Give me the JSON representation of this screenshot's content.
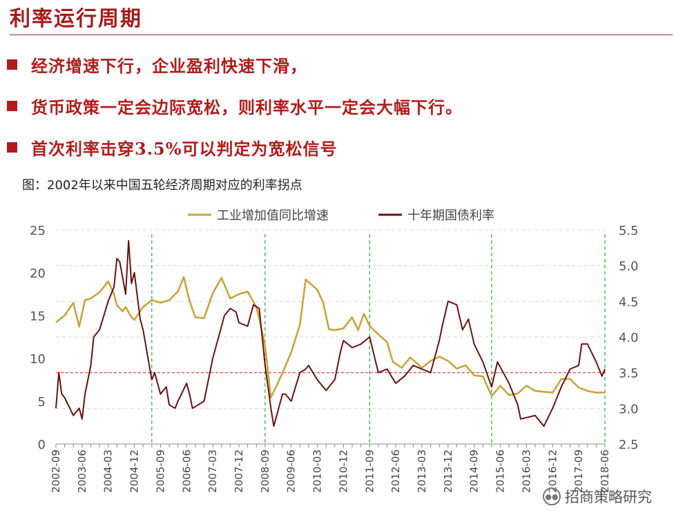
{
  "page": {
    "title": "利率运行周期",
    "bullets": [
      "经济增速下行，企业盈利快速下滑，",
      "货币政策一定会边际宽松，则利率水平一定会大幅下行。",
      "首次利率击穿3.5%可以判定为宽松信号"
    ],
    "figure_caption": "图：2002年以来中国五轮经济周期对应的利率拐点",
    "watermark": "招商策略研究",
    "watermark_icon": "wechat-icon"
  },
  "chart_data": {
    "type": "line",
    "x_start": "2002-09",
    "x_end": "2018-06",
    "x_tick_labels": [
      "2002-09",
      "2003-06",
      "2004-03",
      "2004-12",
      "2005-09",
      "2006-06",
      "2007-03",
      "2007-12",
      "2008-09",
      "2009-06",
      "2010-03",
      "2010-12",
      "2011-09",
      "2012-06",
      "2013-03",
      "2013-12",
      "2014-09",
      "2015-06",
      "2016-03",
      "2016-12",
      "2017-09",
      "2018-06"
    ],
    "y_left": {
      "min": 0,
      "max": 25,
      "ticks": [
        0,
        5,
        10,
        15,
        20,
        25
      ]
    },
    "y_right": {
      "min": 2.5,
      "max": 5.5,
      "ticks": [
        "2.5",
        "3.0",
        "3.5",
        "4.0",
        "4.5",
        "5.0",
        "5.5"
      ]
    },
    "legend_position": "top",
    "grid": "horizontal-dashed",
    "reference_line": {
      "axis": "right",
      "value": 3.5,
      "color": "#e03030",
      "style": "dashed"
    },
    "vertical_markers": {
      "dates": [
        "2005-06",
        "2008-09",
        "2011-09",
        "2015-03",
        "2018-06"
      ],
      "color": "#22aa44",
      "style": "dashed"
    },
    "series": [
      {
        "name": "工业增加值同比增速",
        "axis": "left",
        "color": "#c8a43a",
        "points": [
          [
            "2002-09",
            14.2
          ],
          [
            "2002-12",
            15.0
          ],
          [
            "2003-03",
            16.5
          ],
          [
            "2003-05",
            13.7
          ],
          [
            "2003-07",
            16.8
          ],
          [
            "2003-09",
            17.0
          ],
          [
            "2003-12",
            17.7
          ],
          [
            "2004-03",
            19.0
          ],
          [
            "2004-05",
            17.5
          ],
          [
            "2004-06",
            16.2
          ],
          [
            "2004-08",
            15.5
          ],
          [
            "2004-09",
            16.0
          ],
          [
            "2004-11",
            14.8
          ],
          [
            "2004-12",
            14.5
          ],
          [
            "2005-03",
            16.0
          ],
          [
            "2005-06",
            16.8
          ],
          [
            "2005-09",
            16.5
          ],
          [
            "2005-12",
            16.8
          ],
          [
            "2006-03",
            17.8
          ],
          [
            "2006-05",
            19.5
          ],
          [
            "2006-07",
            16.7
          ],
          [
            "2006-09",
            14.8
          ],
          [
            "2006-12",
            14.7
          ],
          [
            "2007-03",
            17.6
          ],
          [
            "2007-06",
            19.4
          ],
          [
            "2007-09",
            17.0
          ],
          [
            "2007-12",
            17.5
          ],
          [
            "2008-03",
            17.8
          ],
          [
            "2008-06",
            16.0
          ],
          [
            "2008-07",
            14.7
          ],
          [
            "2008-09",
            11.4
          ],
          [
            "2008-11",
            5.4
          ],
          [
            "2009-03",
            8.3
          ],
          [
            "2009-06",
            10.7
          ],
          [
            "2009-09",
            13.9
          ],
          [
            "2009-11",
            19.2
          ],
          [
            "2010-01",
            18.6
          ],
          [
            "2010-03",
            18.0
          ],
          [
            "2010-05",
            16.5
          ],
          [
            "2010-07",
            13.4
          ],
          [
            "2010-09",
            13.3
          ],
          [
            "2010-12",
            13.5
          ],
          [
            "2011-03",
            14.8
          ],
          [
            "2011-05",
            13.3
          ],
          [
            "2011-07",
            15.2
          ],
          [
            "2011-09",
            13.8
          ],
          [
            "2011-12",
            12.8
          ],
          [
            "2012-03",
            11.9
          ],
          [
            "2012-05",
            9.6
          ],
          [
            "2012-08",
            8.9
          ],
          [
            "2012-11",
            10.1
          ],
          [
            "2013-03",
            8.9
          ],
          [
            "2013-06",
            9.7
          ],
          [
            "2013-09",
            10.2
          ],
          [
            "2013-12",
            9.7
          ],
          [
            "2014-03",
            8.8
          ],
          [
            "2014-06",
            9.2
          ],
          [
            "2014-09",
            8.0
          ],
          [
            "2014-12",
            7.9
          ],
          [
            "2015-03",
            5.6
          ],
          [
            "2015-06",
            6.8
          ],
          [
            "2015-09",
            5.7
          ],
          [
            "2015-12",
            5.9
          ],
          [
            "2016-03",
            6.8
          ],
          [
            "2016-06",
            6.2
          ],
          [
            "2016-09",
            6.1
          ],
          [
            "2016-12",
            6.0
          ],
          [
            "2017-03",
            7.6
          ],
          [
            "2017-06",
            7.6
          ],
          [
            "2017-09",
            6.6
          ],
          [
            "2017-12",
            6.2
          ],
          [
            "2018-03",
            6.0
          ],
          [
            "2018-06",
            6.0
          ]
        ]
      },
      {
        "name": "十年期国债利率",
        "axis": "right",
        "color": "#6a1010",
        "points": [
          [
            "2002-09",
            3.0
          ],
          [
            "2002-10",
            3.5
          ],
          [
            "2002-11",
            3.2
          ],
          [
            "2002-12",
            3.15
          ],
          [
            "2003-03",
            2.9
          ],
          [
            "2003-04",
            2.95
          ],
          [
            "2003-05",
            3.0
          ],
          [
            "2003-06",
            2.85
          ],
          [
            "2003-07",
            3.2
          ],
          [
            "2003-09",
            3.6
          ],
          [
            "2003-10",
            4.0
          ],
          [
            "2003-12",
            4.1
          ],
          [
            "2004-03",
            4.5
          ],
          [
            "2004-05",
            4.7
          ],
          [
            "2004-06",
            5.1
          ],
          [
            "2004-07",
            5.05
          ],
          [
            "2004-09",
            4.6
          ],
          [
            "2004-10",
            5.35
          ],
          [
            "2004-11",
            4.75
          ],
          [
            "2004-12",
            4.9
          ],
          [
            "2005-02",
            4.25
          ],
          [
            "2005-03",
            4.1
          ],
          [
            "2005-06",
            3.4
          ],
          [
            "2005-07",
            3.5
          ],
          [
            "2005-09",
            3.2
          ],
          [
            "2005-11",
            3.3
          ],
          [
            "2005-12",
            3.05
          ],
          [
            "2006-02",
            3.0
          ],
          [
            "2006-03",
            3.1
          ],
          [
            "2006-06",
            3.35
          ],
          [
            "2006-07",
            3.2
          ],
          [
            "2006-08",
            3.0
          ],
          [
            "2006-10",
            3.05
          ],
          [
            "2006-12",
            3.1
          ],
          [
            "2007-03",
            3.7
          ],
          [
            "2007-05",
            4.0
          ],
          [
            "2007-07",
            4.3
          ],
          [
            "2007-09",
            4.4
          ],
          [
            "2007-11",
            4.35
          ],
          [
            "2007-12",
            4.2
          ],
          [
            "2008-03",
            4.15
          ],
          [
            "2008-05",
            4.45
          ],
          [
            "2008-07",
            4.4
          ],
          [
            "2008-08",
            4.0
          ],
          [
            "2008-09",
            3.6
          ],
          [
            "2008-11",
            3.0
          ],
          [
            "2008-12",
            2.75
          ],
          [
            "2009-03",
            3.2
          ],
          [
            "2009-04",
            3.2
          ],
          [
            "2009-06",
            3.1
          ],
          [
            "2009-09",
            3.5
          ],
          [
            "2009-11",
            3.55
          ],
          [
            "2009-12",
            3.6
          ],
          [
            "2010-03",
            3.4
          ],
          [
            "2010-06",
            3.25
          ],
          [
            "2010-09",
            3.4
          ],
          [
            "2010-11",
            3.8
          ],
          [
            "2010-12",
            3.95
          ],
          [
            "2011-03",
            3.85
          ],
          [
            "2011-06",
            3.9
          ],
          [
            "2011-09",
            4.0
          ],
          [
            "2011-12",
            3.5
          ],
          [
            "2012-03",
            3.55
          ],
          [
            "2012-06",
            3.35
          ],
          [
            "2012-09",
            3.45
          ],
          [
            "2012-12",
            3.6
          ],
          [
            "2013-03",
            3.55
          ],
          [
            "2013-06",
            3.5
          ],
          [
            "2013-09",
            3.95
          ],
          [
            "2013-10",
            4.15
          ],
          [
            "2013-12",
            4.5
          ],
          [
            "2014-03",
            4.45
          ],
          [
            "2014-05",
            4.1
          ],
          [
            "2014-07",
            4.25
          ],
          [
            "2014-09",
            3.9
          ],
          [
            "2014-12",
            3.65
          ],
          [
            "2015-03",
            3.3
          ],
          [
            "2015-05",
            3.65
          ],
          [
            "2015-07",
            3.5
          ],
          [
            "2015-09",
            3.35
          ],
          [
            "2015-12",
            3.05
          ],
          [
            "2016-01",
            2.85
          ],
          [
            "2016-06",
            2.9
          ],
          [
            "2016-09",
            2.75
          ],
          [
            "2016-12",
            3.0
          ],
          [
            "2017-03",
            3.3
          ],
          [
            "2017-06",
            3.55
          ],
          [
            "2017-09",
            3.6
          ],
          [
            "2017-10",
            3.9
          ],
          [
            "2017-12",
            3.9
          ],
          [
            "2018-03",
            3.65
          ],
          [
            "2018-05",
            3.45
          ],
          [
            "2018-06",
            3.55
          ]
        ]
      }
    ]
  }
}
